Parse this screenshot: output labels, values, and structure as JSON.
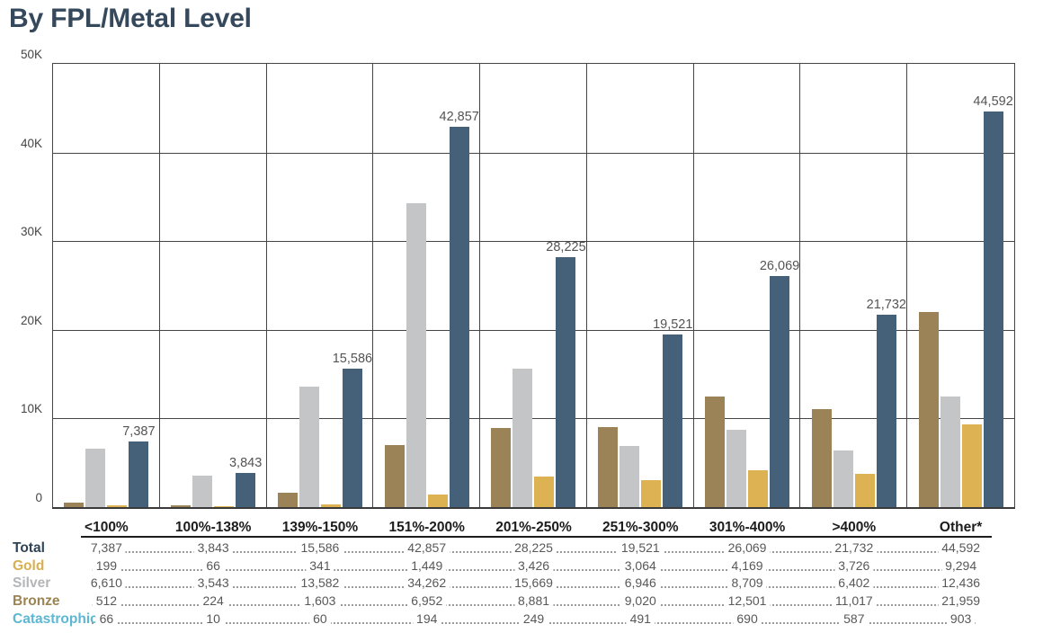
{
  "title": "By FPL/Metal Level",
  "chart_data": {
    "type": "bar",
    "title": "By FPL/Metal Level",
    "categories": [
      "<100%",
      "100%-138%",
      "139%-150%",
      "151%-200%",
      "201%-250%",
      "251%-300%",
      "301%-400%",
      ">400%",
      "Other*"
    ],
    "series": [
      {
        "name": "Bronze",
        "color": "#9b8357",
        "shown_in_chart": true,
        "values": [
          512,
          224,
          1603,
          6952,
          8881,
          9020,
          12501,
          11017,
          21959
        ]
      },
      {
        "name": "Silver",
        "color": "#c4c5c7",
        "shown_in_chart": true,
        "values": [
          6610,
          3543,
          13582,
          34262,
          15669,
          6946,
          8709,
          6402,
          12436
        ]
      },
      {
        "name": "Gold",
        "color": "#ddb252",
        "shown_in_chart": true,
        "values": [
          199,
          66,
          341,
          1449,
          3426,
          3064,
          4169,
          3726,
          9294
        ]
      },
      {
        "name": "Total",
        "color": "#45617a",
        "shown_in_chart": true,
        "values": [
          7387,
          3843,
          15586,
          42857,
          28225,
          19521,
          26069,
          21732,
          44592
        ]
      },
      {
        "name": "Catastrophic",
        "color": "#5cb7d2",
        "shown_in_chart": false,
        "values": [
          66,
          10,
          60,
          194,
          249,
          491,
          690,
          587,
          903
        ]
      }
    ],
    "bar_labels": {
      "series": "Total",
      "values": [
        "7,387",
        "3,843",
        "15,586",
        "42,857",
        "28,225",
        "19,521",
        "26,069",
        "21,732",
        "44,592"
      ]
    },
    "y_axis": {
      "max": 50000,
      "tick_labels": [
        "0",
        "10K",
        "20K",
        "30K",
        "40K",
        "50K"
      ],
      "tick_values": [
        0,
        10000,
        20000,
        30000,
        40000,
        50000
      ]
    },
    "grid": true,
    "legend_position": "none"
  },
  "table": {
    "rows": [
      {
        "label": "Total",
        "color": "#2e4355",
        "values": [
          "7,387",
          "3,843",
          "15,586",
          "42,857",
          "28,225",
          "19,521",
          "26,069",
          "21,732",
          "44,592"
        ]
      },
      {
        "label": "Gold",
        "color": "#d8af52",
        "values": [
          "199",
          "66",
          "341",
          "1,449",
          "3,426",
          "3,064",
          "4,169",
          "3,726",
          "9,294"
        ]
      },
      {
        "label": "Silver",
        "color": "#b4b5b7",
        "values": [
          "6,610",
          "3,543",
          "13,582",
          "34,262",
          "15,669",
          "6,946",
          "8,709",
          "6,402",
          "12,436"
        ]
      },
      {
        "label": "Bronze",
        "color": "#9b8354",
        "values": [
          "512",
          "224",
          "1,603",
          "6,952",
          "8,881",
          "9,020",
          "12,501",
          "11,017",
          "21,959"
        ]
      },
      {
        "label": "Catastrophic",
        "color": "#5cb7d2",
        "values": [
          "66",
          "10",
          "60",
          "194",
          "249",
          "491",
          "690",
          "587",
          "903"
        ]
      }
    ]
  }
}
